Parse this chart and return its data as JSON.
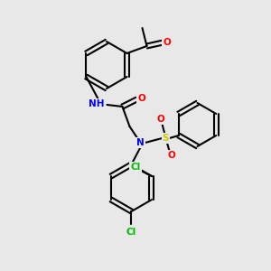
{
  "bg_color": "#e8e8e8",
  "fig_width": 3.0,
  "fig_height": 3.0,
  "dpi": 100,
  "bond_color": "#000000",
  "bond_width": 1.5,
  "atom_colors": {
    "N": "#0000ff",
    "O": "#ff0000",
    "S": "#cccc00",
    "Cl": "#00bb00",
    "C": "#000000",
    "H": "#808080"
  },
  "font_size": 7.5
}
